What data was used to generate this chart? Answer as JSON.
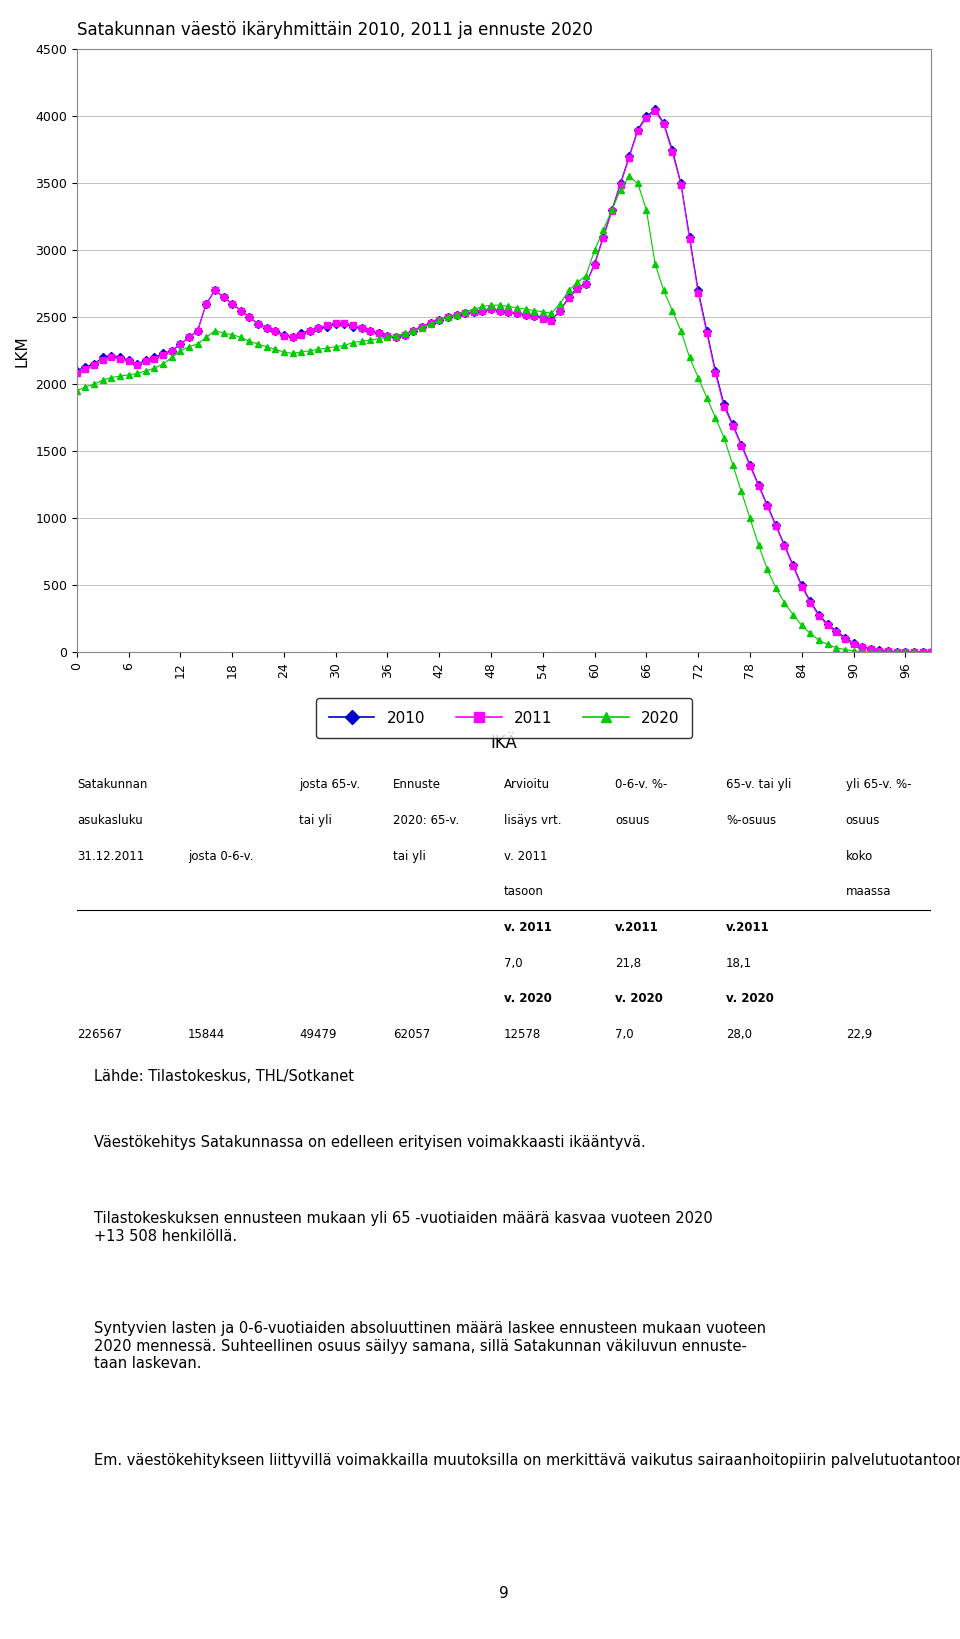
{
  "title": "Satakunnan väestö ikäryhmittäin 2010, 2011 ja ennuste 2020",
  "xlabel": "IKÄ",
  "ylabel": "LKM",
  "xlim": [
    0,
    99
  ],
  "ylim": [
    0,
    4500
  ],
  "yticks": [
    0,
    500,
    1000,
    1500,
    2000,
    2500,
    3000,
    3500,
    4000,
    4500
  ],
  "xticks": [
    0,
    6,
    12,
    18,
    24,
    30,
    36,
    42,
    48,
    54,
    60,
    66,
    72,
    78,
    84,
    90,
    96
  ],
  "legend_labels": [
    "2010",
    "2011",
    "2020"
  ],
  "line_colors": [
    "#0000CD",
    "#FF00FF",
    "#00CC00"
  ],
  "marker_styles": [
    "D",
    "s",
    "^"
  ],
  "marker_sizes": [
    4,
    4,
    4
  ],
  "background_color": "#FFFFFF",
  "source_text": "Lähde: Tilastokeskus, THL/Sotkanet",
  "paragraph1": "Väestökehitys Satakunnassa on edelleen erityisen voimakkaasti ikääntyvä.",
  "paragraph2": "Tilastokeskuksen ennusteen mukaan yli 65 -vuotiaiden määrä kasvaa vuoteen 2020\n+13 508 henkilöllä.",
  "paragraph3": "Syntyvien lasten ja 0-6-vuotiaiden absoluuttinen määrä laskee ennusteen mukaan vuoteen\n2020 mennessä. Suhteellinen osuus säilyy samana, sillä Satakunnan väkiluvun ennuste-\ntaan laskevan.",
  "paragraph4": "Em. väestökehitykseen liittyvillä voimakkailla muutoksilla on merkittävä vaikutus sairaanhoitopiirin palvelutuotantoon, rakenteeseen ja sisältöön.",
  "page_number": "9",
  "pop_2010": [
    2100,
    2130,
    2150,
    2200,
    2210,
    2200,
    2180,
    2150,
    2180,
    2200,
    2230,
    2250,
    2300,
    2350,
    2400,
    2600,
    2700,
    2650,
    2600,
    2550,
    2500,
    2450,
    2420,
    2400,
    2370,
    2350,
    2380,
    2400,
    2420,
    2430,
    2450,
    2450,
    2430,
    2420,
    2400,
    2380,
    2360,
    2350,
    2370,
    2400,
    2430,
    2460,
    2480,
    2500,
    2520,
    2530,
    2540,
    2550,
    2560,
    2550,
    2540,
    2530,
    2520,
    2510,
    2500,
    2480,
    2550,
    2650,
    2720,
    2750,
    2900,
    3100,
    3300,
    3500,
    3700,
    3900,
    4000,
    4050,
    3950,
    3750,
    3500,
    3100,
    2700,
    2400,
    2100,
    1850,
    1700,
    1550,
    1400,
    1250,
    1100,
    950,
    800,
    650,
    500,
    380,
    280,
    210,
    160,
    110,
    70,
    40,
    25,
    15,
    8,
    4,
    2,
    1,
    0,
    0
  ],
  "pop_2011": [
    2080,
    2110,
    2140,
    2180,
    2200,
    2190,
    2170,
    2140,
    2170,
    2190,
    2220,
    2250,
    2300,
    2350,
    2400,
    2600,
    2700,
    2650,
    2600,
    2550,
    2500,
    2450,
    2420,
    2400,
    2360,
    2350,
    2370,
    2400,
    2420,
    2440,
    2460,
    2460,
    2440,
    2420,
    2400,
    2380,
    2360,
    2350,
    2370,
    2400,
    2430,
    2460,
    2480,
    2500,
    2520,
    2530,
    2540,
    2550,
    2560,
    2550,
    2540,
    2530,
    2520,
    2510,
    2490,
    2470,
    2550,
    2640,
    2710,
    2750,
    2890,
    3090,
    3290,
    3490,
    3690,
    3890,
    3990,
    4040,
    3940,
    3730,
    3490,
    3080,
    2680,
    2380,
    2080,
    1830,
    1690,
    1540,
    1390,
    1240,
    1090,
    940,
    790,
    640,
    490,
    370,
    270,
    200,
    150,
    100,
    65,
    38,
    23,
    13,
    7,
    3,
    1,
    1,
    0,
    0
  ],
  "pop_2020": [
    1950,
    1980,
    2000,
    2030,
    2050,
    2060,
    2070,
    2080,
    2100,
    2120,
    2150,
    2200,
    2250,
    2280,
    2300,
    2350,
    2400,
    2380,
    2370,
    2350,
    2320,
    2300,
    2280,
    2260,
    2240,
    2230,
    2240,
    2250,
    2260,
    2270,
    2280,
    2290,
    2310,
    2320,
    2330,
    2340,
    2350,
    2360,
    2380,
    2400,
    2420,
    2450,
    2480,
    2500,
    2520,
    2540,
    2560,
    2580,
    2590,
    2590,
    2580,
    2570,
    2560,
    2550,
    2540,
    2530,
    2600,
    2700,
    2760,
    2810,
    3000,
    3150,
    3300,
    3450,
    3550,
    3500,
    3300,
    2900,
    2700,
    2550,
    2400,
    2200,
    2050,
    1900,
    1750,
    1600,
    1400,
    1200,
    1000,
    800,
    620,
    480,
    370,
    280,
    200,
    140,
    90,
    58,
    34,
    20,
    10,
    5,
    2,
    1,
    0,
    0,
    0,
    0
  ]
}
